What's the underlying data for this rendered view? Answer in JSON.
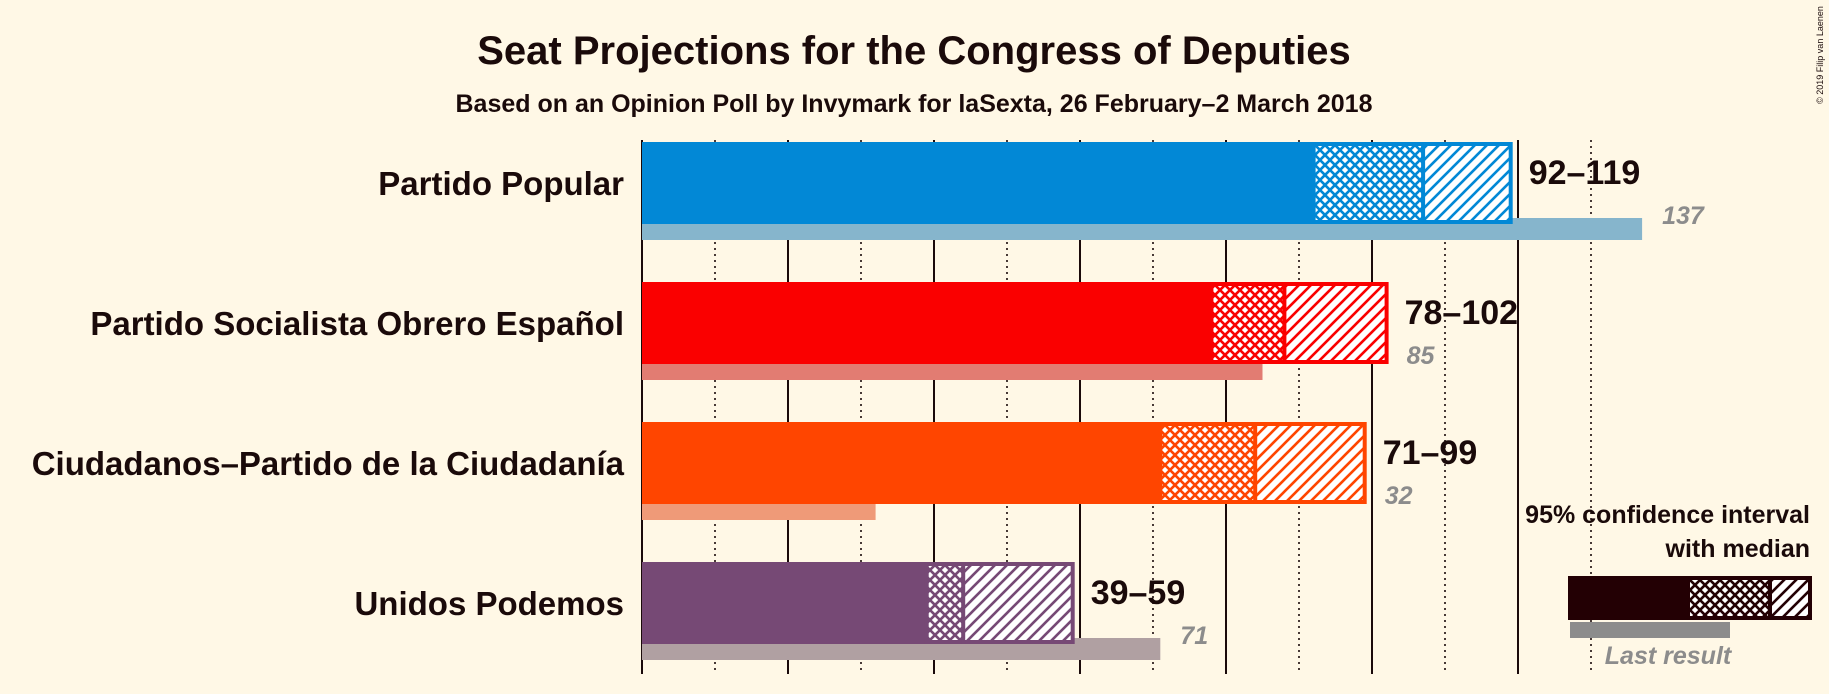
{
  "chart_data": {
    "type": "bar",
    "title": "Seat Projections for the Congress of Deputies",
    "subtitle": "Based on an Opinion Poll by Invymark for laSexta, 26 February–2 March 2018",
    "copyright": "© 2019 Filip van Laenen",
    "xlim": [
      0,
      140
    ],
    "major_gridlines": [
      0,
      20,
      40,
      60,
      80,
      100,
      120
    ],
    "minor_gridlines": [
      10,
      30,
      50,
      70,
      90,
      110,
      130
    ],
    "series": [
      {
        "name": "Partido Popular",
        "low": 92,
        "median": 107,
        "high": 119,
        "last_result": 137,
        "range_label": "92–119",
        "last_label": "137",
        "color": "#0288d6",
        "last_color": "#86b5cc"
      },
      {
        "name": "Partido Socialista Obrero Español",
        "low": 78,
        "median": 88,
        "high": 102,
        "last_result": 85,
        "range_label": "78–102",
        "last_label": "85",
        "color": "#fa0000",
        "last_color": "#e27c72"
      },
      {
        "name": "Ciudadanos–Partido de la Ciudadanía",
        "low": 71,
        "median": 84,
        "high": 99,
        "last_result": 32,
        "range_label": "71–99",
        "last_label": "32",
        "color": "#ff4500",
        "last_color": "#ef9a78"
      },
      {
        "name": "Unidos Podemos",
        "low": 39,
        "median": 44,
        "high": 59,
        "last_result": 71,
        "range_label": "39–59",
        "last_label": "71",
        "color": "#764975",
        "last_color": "#b0a0a2"
      }
    ],
    "legend": {
      "line1": "95% confidence interval",
      "line2": "with median",
      "last": "Last result",
      "color": "#230004",
      "last_color": "#8c8c8c",
      "position": "bottom-right"
    }
  }
}
